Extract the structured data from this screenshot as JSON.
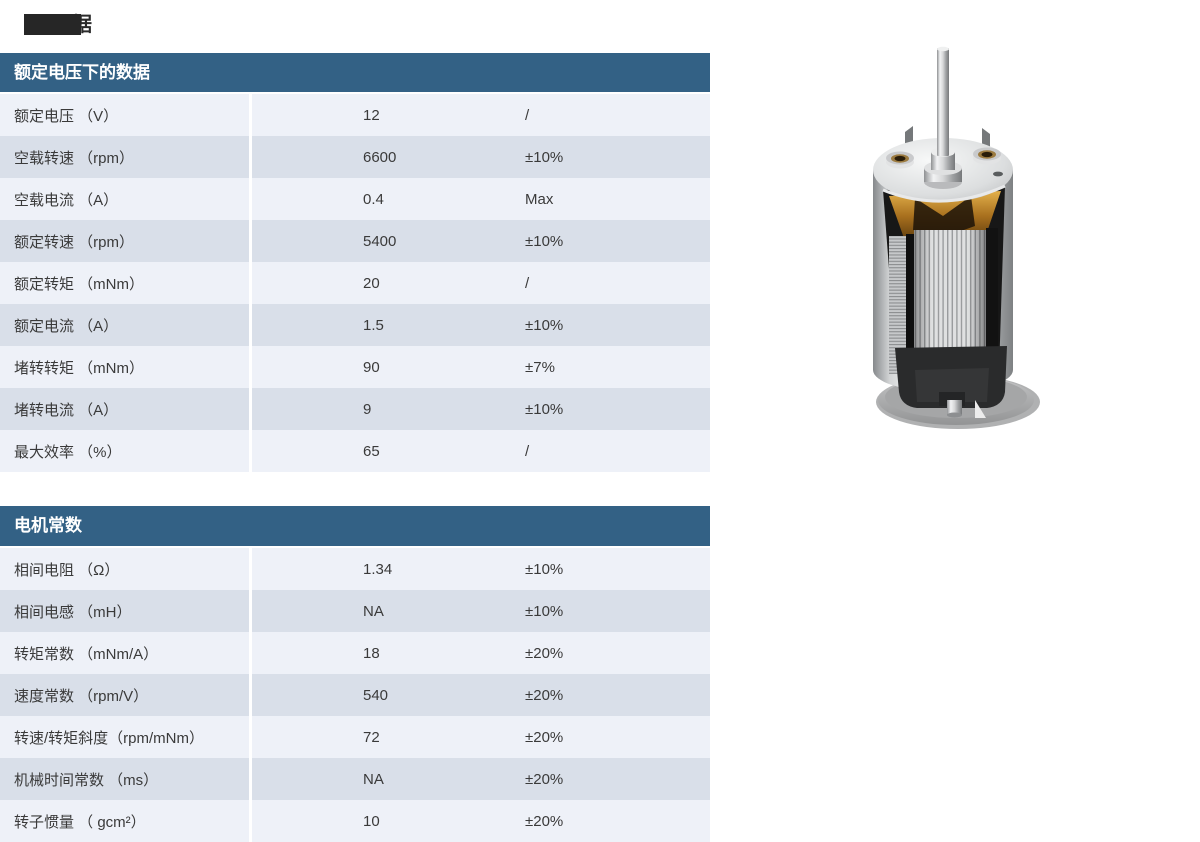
{
  "title": {
    "redacted_visible_char": "据"
  },
  "colors": {
    "header_bg": "#336185",
    "row_light": "#eef1f8",
    "row_dark": "#d9dfe9",
    "header_text": "#ffffff",
    "body_text": "#3a3a3a",
    "redaction_box": "#262626"
  },
  "tables": [
    {
      "header": "额定电压下的数据",
      "rows": [
        {
          "label": "额定电压 （V）",
          "value": "12",
          "tolerance": "/"
        },
        {
          "label": "空载转速 （rpm）",
          "value": "6600",
          "tolerance": "±10%"
        },
        {
          "label": "空载电流 （A）",
          "value": "0.4",
          "tolerance": "Max"
        },
        {
          "label": "额定转速 （rpm）",
          "value": "5400",
          "tolerance": "±10%"
        },
        {
          "label": "额定转矩 （mNm）",
          "value": "20",
          "tolerance": "/"
        },
        {
          "label": "额定电流 （A）",
          "value": "1.5",
          "tolerance": "±10%"
        },
        {
          "label": "堵转转矩 （mNm）",
          "value": "90",
          "tolerance": "±7%"
        },
        {
          "label": "堵转电流 （A）",
          "value": "9",
          "tolerance": "±10%"
        },
        {
          "label": "最大效率 （%）",
          "value": "65",
          "tolerance": "/"
        }
      ]
    },
    {
      "header": "电机常数",
      "rows": [
        {
          "label": "相间电阻 （Ω）",
          "value": "1.34",
          "tolerance": "±10%"
        },
        {
          "label": "相间电感 （mH）",
          "value": "NA",
          "tolerance": "±10%"
        },
        {
          "label": "转矩常数 （mNm/A）",
          "value": "18",
          "tolerance": "±20%"
        },
        {
          "label": "速度常数 （rpm/V）",
          "value": "540",
          "tolerance": "±20%"
        },
        {
          "label": "转速/转矩斜度（rpm/mNm）",
          "value": "72",
          "tolerance": "±20%"
        },
        {
          "label": "机械时间常数 （ms）",
          "value": "NA",
          "tolerance": "±20%"
        },
        {
          "label": "转子惯量 （ gcm²）",
          "value": "10",
          "tolerance": "±20%"
        }
      ]
    }
  ],
  "motor_image": {
    "alt": "cutaway-dc-motor-render"
  }
}
